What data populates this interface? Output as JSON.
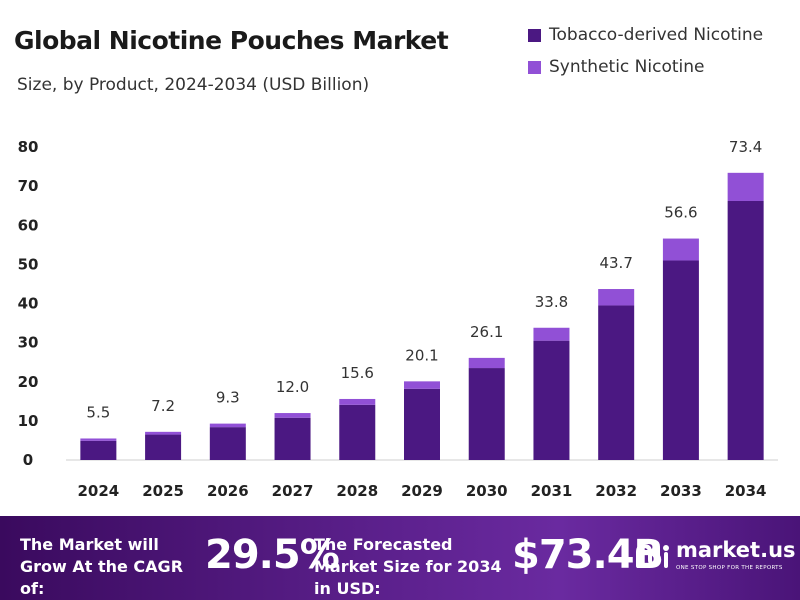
{
  "chart_data": {
    "type": "bar",
    "stacked": true,
    "title": "Global Nicotine Pouches Market",
    "subtitle": "Size, by Product, 2024-2034 (USD Billion)",
    "categories": [
      "2024",
      "2025",
      "2026",
      "2027",
      "2028",
      "2029",
      "2030",
      "2031",
      "2032",
      "2033",
      "2034"
    ],
    "series": [
      {
        "name": "Tobacco-derived Nicotine",
        "color": "#4b1882",
        "values": [
          4.9,
          6.5,
          8.4,
          10.8,
          14.1,
          18.2,
          23.5,
          30.5,
          39.5,
          51.0,
          66.2
        ]
      },
      {
        "name": "Synthetic Nicotine",
        "color": "#9150d6",
        "values": [
          0.6,
          0.7,
          0.9,
          1.2,
          1.5,
          1.9,
          2.6,
          3.3,
          4.2,
          5.6,
          7.2
        ]
      }
    ],
    "totals": [
      5.5,
      7.2,
      9.3,
      12.0,
      15.6,
      20.1,
      26.1,
      33.8,
      43.7,
      56.6,
      73.4
    ],
    "total_labels": [
      "5.5",
      "7.2",
      "9.3",
      "12.0",
      "15.6",
      "20.1",
      "26.1",
      "33.8",
      "43.7",
      "56.6",
      "73.4"
    ],
    "ylim": [
      0,
      80
    ],
    "yticks": [
      0,
      10,
      20,
      30,
      40,
      50,
      60,
      70,
      80
    ],
    "xlabel": "",
    "ylabel": "",
    "grid": false,
    "legend_position": "top-right"
  },
  "footer": {
    "cagr_label": "The Market will Grow At the CAGR of:",
    "cagr_value": "29.5%",
    "forecast_label": "The Forecasted Market Size for 2034 in USD:",
    "forecast_value": "$73.4B",
    "brand_name": "market.us",
    "brand_tagline": "ONE STOP SHOP FOR THE REPORTS",
    "logo_icon": "market-us-logo-icon",
    "background_color": "#5a1f8a"
  }
}
